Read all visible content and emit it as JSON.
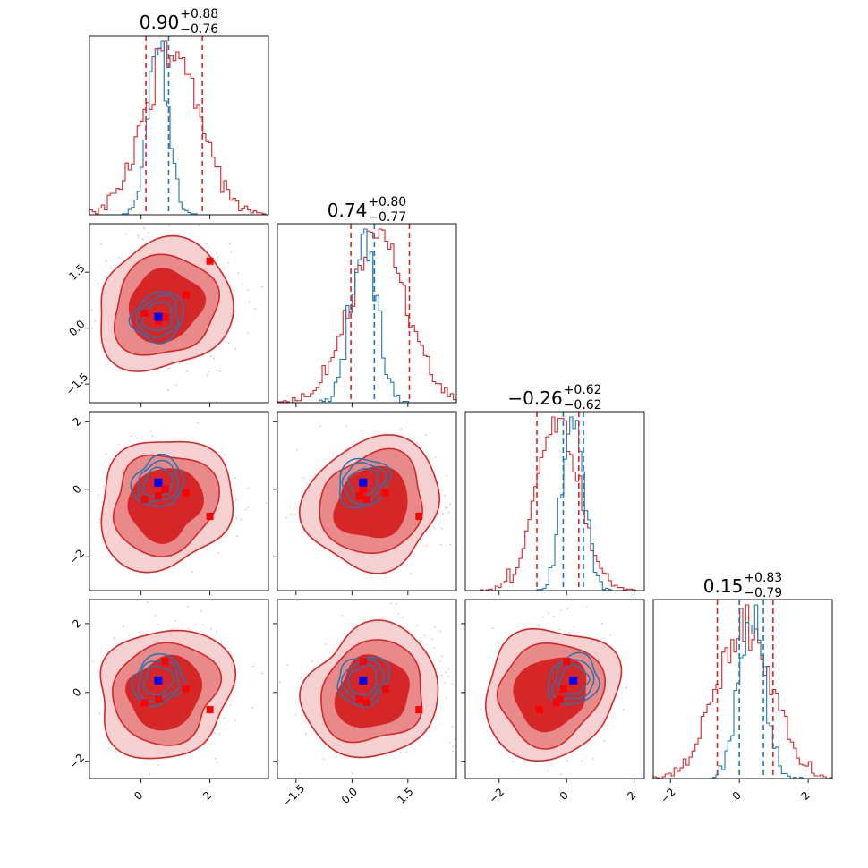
{
  "figure": {
    "type": "corner-plot",
    "colors": {
      "red": "#d62728",
      "red_mid": "#e8898a",
      "red_light": "#f6d1d1",
      "blue": "#1f77b4",
      "blue_mark": "#0000ff",
      "red_mark": "#ff0000"
    }
  },
  "chart_data": {
    "type": "corner",
    "n_params": 4,
    "axis_ranges": [
      [
        -1.5,
        3.7
      ],
      [
        -2.0,
        2.8
      ],
      [
        -3.0,
        2.3
      ],
      [
        -2.5,
        2.7
      ]
    ],
    "ticks": {
      "x": [
        {
          "values": [
            0,
            2
          ],
          "labels": [
            "0",
            "2"
          ]
        },
        {
          "values": [
            -1.5,
            0.0,
            1.5
          ],
          "labels": [
            "−1.5",
            "0.0",
            "1.5"
          ]
        },
        {
          "values": [
            -2,
            0,
            2
          ],
          "labels": [
            "−2",
            "0",
            "2"
          ]
        },
        {
          "values": [
            -2,
            0,
            2
          ],
          "labels": [
            "−2",
            "0",
            "2"
          ]
        }
      ],
      "y": [
        null,
        {
          "values": [
            -1.5,
            0.0,
            1.5
          ],
          "labels": [
            "−1.5",
            "0.0",
            "1.5"
          ]
        },
        {
          "values": [
            -2,
            0,
            2
          ],
          "labels": [
            "−2",
            "0",
            "2"
          ]
        },
        {
          "values": [
            -2,
            0,
            2
          ],
          "labels": [
            "−2",
            "0",
            "2"
          ]
        }
      ]
    },
    "titles": [
      {
        "median": "0.90",
        "plus": "+0.88",
        "minus": "−0.76"
      },
      {
        "median": "0.74",
        "plus": "+0.80",
        "minus": "−0.77"
      },
      {
        "median": "−0.26",
        "plus": "+0.62",
        "minus": "−0.62"
      },
      {
        "median": "0.15",
        "plus": "+0.83",
        "minus": "−0.79"
      }
    ],
    "red": {
      "means": [
        0.9,
        0.74,
        -0.26,
        0.15
      ],
      "sds": [
        0.82,
        0.78,
        0.62,
        0.81
      ],
      "quantiles": [
        [
          0.14,
          1.78
        ],
        [
          -0.03,
          1.54
        ],
        [
          -0.88,
          0.36
        ],
        [
          -0.64,
          0.98
        ]
      ]
    },
    "blue": {
      "means": [
        0.5,
        0.3,
        0.2,
        0.35
      ],
      "sds": [
        0.3,
        0.35,
        0.33,
        0.38
      ],
      "quantiles": [
        [
          0.8
        ],
        [
          0.6
        ],
        [
          -0.1,
          0.5
        ],
        [
          0.0,
          0.7
        ]
      ]
    },
    "blue_marker": [
      0.5,
      0.3,
      0.2,
      0.35
    ],
    "red_markers": [
      [
        0.1,
        0.4,
        -0.3,
        -0.3
      ],
      [
        1.3,
        0.9,
        -0.1,
        0.1
      ],
      [
        2.0,
        1.8,
        -0.8,
        -0.5
      ],
      [
        0.7,
        0.3,
        0.0,
        0.9
      ],
      [
        0.5,
        0.2,
        -0.2,
        -0.2
      ]
    ]
  }
}
